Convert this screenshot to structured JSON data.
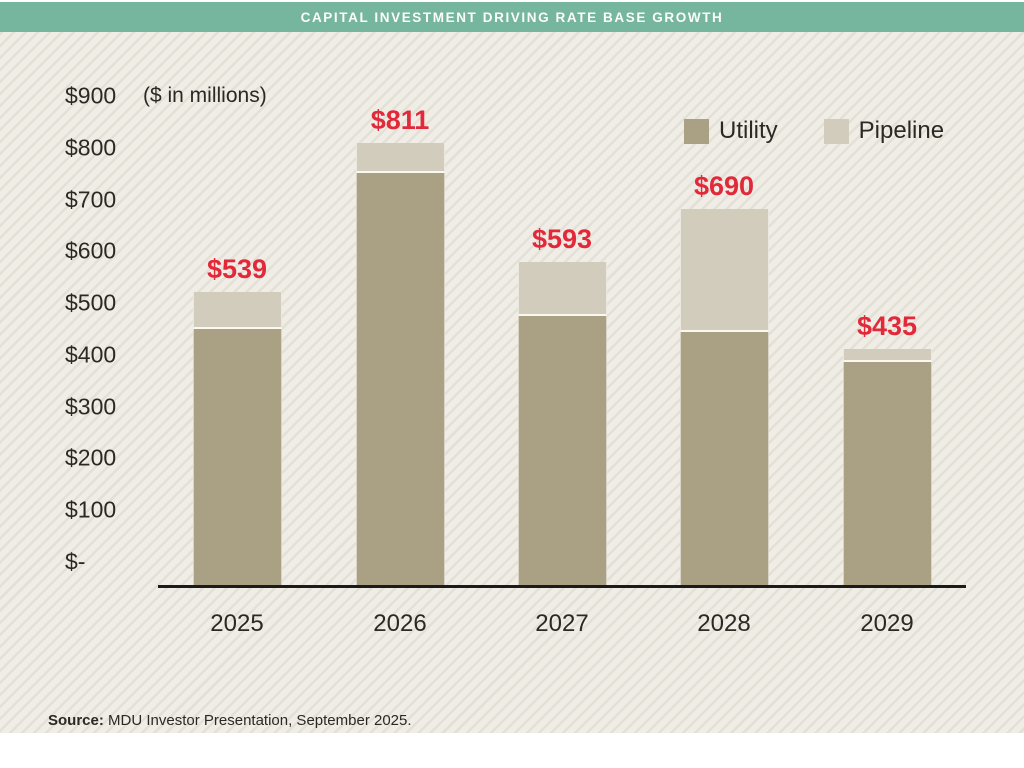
{
  "header": {
    "title": "CAPITAL INVESTMENT DRIVING RATE BASE GROWTH"
  },
  "chart_data": {
    "type": "bar",
    "stacked": true,
    "title": "CAPITAL INVESTMENT DRIVING RATE BASE GROWTH",
    "unit_note": "($ in millions)",
    "categories": [
      "2025",
      "2026",
      "2027",
      "2028",
      "2029"
    ],
    "series": [
      {
        "name": "Utility",
        "color": "#aaa084",
        "values": [
          470,
          755,
          495,
          465,
          410
        ]
      },
      {
        "name": "Pipeline",
        "color": "#d2ccbd",
        "values": [
          69,
          56,
          98,
          225,
          25
        ]
      }
    ],
    "totals": [
      539,
      811,
      593,
      690,
      435
    ],
    "total_labels": [
      "$539",
      "$811",
      "$593",
      "$690",
      "$435"
    ],
    "total_label_color": "#e2293a",
    "ylabel": "",
    "xlabel": "",
    "ylim": [
      0,
      900
    ],
    "yticks": [
      "$900",
      "$800",
      "$700",
      "$600",
      "$500",
      "$400",
      "$300",
      "$200",
      "$100",
      "$-"
    ],
    "grid": false,
    "legend_position": "top-right"
  },
  "legend": {
    "items": [
      {
        "label": "Utility",
        "color": "#aaa084"
      },
      {
        "label": "Pipeline",
        "color": "#d2ccbd"
      }
    ]
  },
  "source": {
    "prefix": "Source:",
    "text": " MDU Investor Presentation, September 2025."
  }
}
